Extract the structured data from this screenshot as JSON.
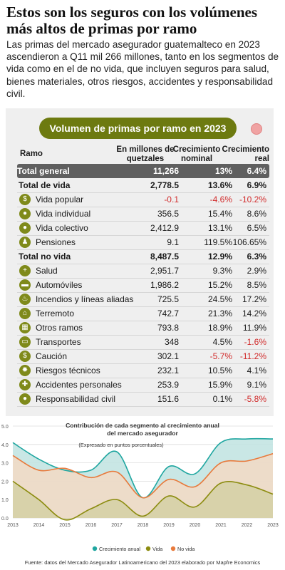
{
  "header": {
    "title": "Estos son los seguros con los volúmenes más altos de primas por ramo",
    "intro": "Las primas del mercado asegurador guatemalteco en 2023 ascendieron a Q11 mil 266 millones, tanto en los segmentos de vida como en el de no vida, que incluyen seguros para salud, bienes materiales, otros riesgos, accidentes y responsabilidad civil."
  },
  "table": {
    "title": "Volumen de primas por ramo en 2023",
    "headers": {
      "ramo": "Ramo",
      "millones": "En millones de quetzales",
      "nominal": "Crecimiento nominal",
      "real": "Crecimiento real"
    },
    "rows": [
      {
        "name": "Total general",
        "value": "11,266",
        "nominal": "13%",
        "real": "6.4%",
        "kind": "grand"
      },
      {
        "name": "Total de vida",
        "value": "2,778.5",
        "nominal": "13.6%",
        "real": "6.9%",
        "kind": "total"
      },
      {
        "name": "Vida popular",
        "value": "-0.1",
        "nominal": "-4.6%",
        "real": "-10.2%",
        "kind": "item",
        "icon": "coin-icon"
      },
      {
        "name": "Vida individual",
        "value": "356.5",
        "nominal": "15.4%",
        "real": "8.6%",
        "kind": "item",
        "icon": "person-icon"
      },
      {
        "name": "Vida colectivo",
        "value": "2,412.9",
        "nominal": "13.1%",
        "real": "6.5%",
        "kind": "item",
        "icon": "group-icon"
      },
      {
        "name": "Pensiones",
        "value": "9.1",
        "nominal": "119.5%",
        "real": "106.65%",
        "kind": "item",
        "icon": "elder-icon"
      },
      {
        "name": "Total no vida",
        "value": "8,487.5",
        "nominal": "12.9%",
        "real": "6.3%",
        "kind": "total"
      },
      {
        "name": "Salud",
        "value": "2,951.7",
        "nominal": "9.3%",
        "real": "2.9%",
        "kind": "item",
        "icon": "health-icon"
      },
      {
        "name": "Automóviles",
        "value": "1,986.2",
        "nominal": "15.2%",
        "real": "8.5%",
        "kind": "item",
        "icon": "car-icon"
      },
      {
        "name": "Incendios y líneas aliadas",
        "value": "725.5",
        "nominal": "24.5%",
        "real": "17.2%",
        "kind": "item",
        "icon": "fire-icon"
      },
      {
        "name": "Terremoto",
        "value": "742.7",
        "nominal": "21.3%",
        "real": "14.2%",
        "kind": "item",
        "icon": "house-icon"
      },
      {
        "name": "Otros ramos",
        "value": "793.8",
        "nominal": "18.9%",
        "real": "11.9%",
        "kind": "item",
        "icon": "grid-icon"
      },
      {
        "name": "Transportes",
        "value": "348",
        "nominal": "4.5%",
        "real": "-1.6%",
        "kind": "item",
        "icon": "bus-icon"
      },
      {
        "name": "Caución",
        "value": "302.1",
        "nominal": "-5.7%",
        "real": "-11.2%",
        "kind": "item",
        "icon": "money-icon"
      },
      {
        "name": "Riesgos técnicos",
        "value": "232.1",
        "nominal": "10.5%",
        "real": "4.1%",
        "kind": "item",
        "icon": "gear-icon"
      },
      {
        "name": "Accidentes personales",
        "value": "253.9",
        "nominal": "15.9%",
        "real": "9.1%",
        "kind": "item",
        "icon": "accident-icon"
      },
      {
        "name": "Responsabilidad civil",
        "value": "151.6",
        "nominal": "0.1%",
        "real": "-5.8%",
        "kind": "item",
        "icon": "people-icon"
      }
    ]
  },
  "chart_data": {
    "type": "area",
    "title": "Contribución de cada segmento al crecimiento anual del mercado asegurador",
    "subtitle": "(Expresado en puntos porcentuales)",
    "x": [
      2013,
      2014,
      2015,
      2016,
      2017,
      2018,
      2019,
      2020,
      2021,
      2022,
      2023
    ],
    "ylim": [
      0,
      5
    ],
    "yticks": [
      "0.0",
      "1.0",
      "2.0",
      "3.0",
      "4.0",
      "5.0"
    ],
    "grid": true,
    "legend_position": "bottom",
    "series": [
      {
        "name": "Crecimiento anual",
        "color": "#1fa6a0",
        "values": [
          4.1,
          3.2,
          2.6,
          2.6,
          3.6,
          1.1,
          2.8,
          2.4,
          4.1,
          4.3,
          4.3
        ]
      },
      {
        "name": "Vida",
        "color": "#8c8c10",
        "values": [
          2.0,
          1.0,
          -0.1,
          0.5,
          1.0,
          0.1,
          1.2,
          0.6,
          1.9,
          1.8,
          1.3
        ]
      },
      {
        "name": "No vida",
        "color": "#e87a3c",
        "values": [
          3.4,
          2.6,
          2.7,
          2.2,
          2.5,
          1.1,
          2.1,
          1.7,
          3.0,
          3.1,
          3.5
        ]
      }
    ]
  },
  "source": "Fuente: datos del Mercado Asegurador Latinoamericano del 2023 elaborado por Mapfre Economics"
}
